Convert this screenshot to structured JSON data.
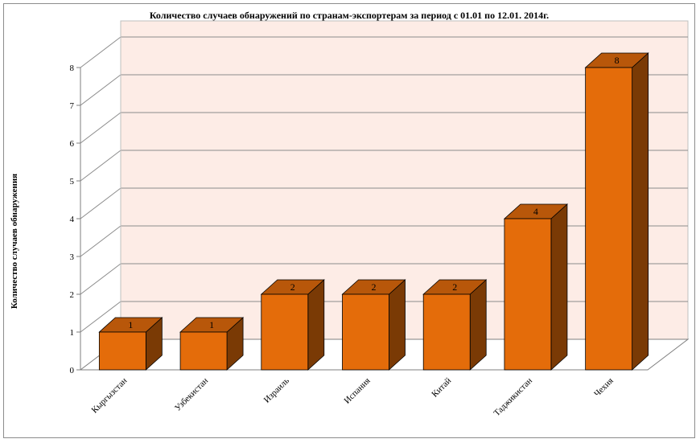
{
  "chart_data": {
    "type": "bar",
    "title": "Количество случаев обнаружений по странам-экспортерам за период с 01.01 по 12.01. 2014г.",
    "ylabel": "Количество случаев обнаружения",
    "xlabel": "",
    "categories": [
      "Кыргызстан",
      "Узбекистан",
      "Израиль",
      "Испания",
      "Китай",
      "Таджикистан",
      "Чехия"
    ],
    "values": [
      1,
      1,
      2,
      2,
      2,
      4,
      8
    ],
    "ylim": [
      0,
      8
    ],
    "yticks": [
      "0",
      "1",
      "2",
      "3",
      "4",
      "5",
      "6",
      "7",
      "8"
    ],
    "grid": true,
    "style": "3d-column",
    "colors": {
      "bar_front": "#e46c0a",
      "bar_top": "#b8570a",
      "bar_side": "#7a3a05",
      "wall": "#fdece6"
    }
  }
}
